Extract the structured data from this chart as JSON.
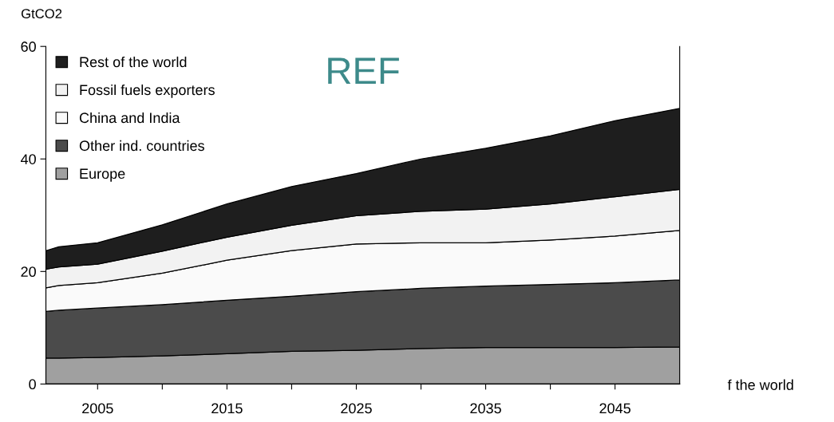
{
  "chart_data": {
    "type": "area",
    "stacked": true,
    "title": "REF",
    "ylabel": "GtCO2",
    "x": [
      2001,
      2002,
      2005,
      2010,
      2015,
      2020,
      2025,
      2030,
      2035,
      2040,
      2045,
      2050
    ],
    "series": [
      {
        "name": "Europe",
        "color": "#a0a0a0",
        "values": [
          4.6,
          4.6,
          4.7,
          5.0,
          5.4,
          5.8,
          6.0,
          6.3,
          6.5,
          6.5,
          6.5,
          6.6
        ]
      },
      {
        "name": "Other ind. countries",
        "color": "#4b4b4b",
        "values": [
          8.3,
          8.5,
          8.8,
          9.1,
          9.5,
          9.8,
          10.4,
          10.7,
          10.9,
          11.2,
          11.5,
          11.9
        ]
      },
      {
        "name": "China and India",
        "color": "#fafafa",
        "values": [
          4.2,
          4.4,
          4.5,
          5.6,
          7.1,
          8.1,
          8.5,
          8.1,
          7.7,
          7.9,
          8.3,
          8.8
        ]
      },
      {
        "name": "Fossil fuels exporters",
        "color": "#f2f2f2",
        "values": [
          3.3,
          3.3,
          3.3,
          3.9,
          4.1,
          4.5,
          5.0,
          5.6,
          6.0,
          6.4,
          7.0,
          7.3
        ]
      },
      {
        "name": "Rest of the world",
        "color": "#1e1e1e",
        "values": [
          3.3,
          3.6,
          3.8,
          4.7,
          5.9,
          6.9,
          7.5,
          9.3,
          10.8,
          12.1,
          13.5,
          14.4
        ]
      }
    ],
    "xlim": [
      2001,
      2050
    ],
    "ylim": [
      0,
      60
    ],
    "yticks": [
      0,
      20,
      40,
      60
    ],
    "xticks": [
      2005,
      {
        "value": 2010,
        "label": null
      },
      2015,
      {
        "value": 2020,
        "label": null
      },
      2025,
      {
        "value": 2030,
        "label": null
      },
      2035,
      {
        "value": 2040,
        "label": null
      },
      2045
    ],
    "annotations": [
      "f the world"
    ],
    "legend": "top left",
    "grid": false
  }
}
